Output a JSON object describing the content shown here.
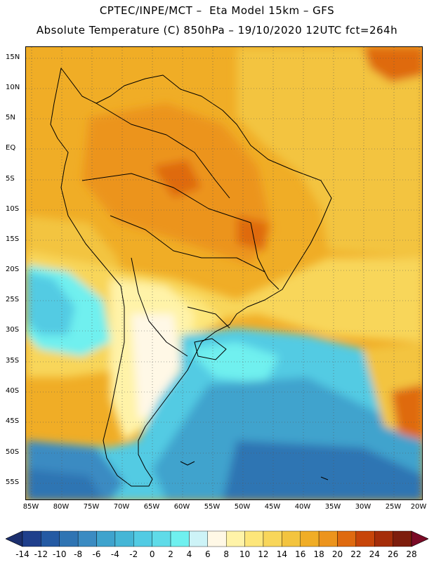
{
  "header": {
    "line1": "CPTEC/INPE/MCT –  Eta Model 15km – GFS",
    "line2": "Absolute Temperature (C) 850hPa – 19/10/2020 12UTC fct=264h"
  },
  "map": {
    "lat_labels": [
      "15N",
      "10N",
      "5N",
      "EQ",
      "5S",
      "10S",
      "15S",
      "20S",
      "25S",
      "30S",
      "35S",
      "40S",
      "45S",
      "50S",
      "55S"
    ],
    "lon_labels": [
      "85W",
      "80W",
      "75W",
      "70W",
      "65W",
      "60W",
      "55W",
      "50W",
      "45W",
      "40W",
      "35W",
      "30W",
      "25W",
      "20W"
    ],
    "gridlines": "dotted"
  },
  "colorbar": {
    "values": [
      "-14",
      "-12",
      "-10",
      "-8",
      "-6",
      "-4",
      "-2",
      "0",
      "2",
      "4",
      "6",
      "8",
      "10",
      "12",
      "14",
      "16",
      "18",
      "20",
      "22",
      "24",
      "26",
      "28"
    ],
    "colors": [
      "#1f3f8c",
      "#245aa3",
      "#2f74b3",
      "#3b8bc2",
      "#3fa3cd",
      "#45b6d6",
      "#52cbe3",
      "#5fdbe8",
      "#6ff0ef",
      "#cdf3f7",
      "#fff8e6",
      "#fff3a8",
      "#fde67a",
      "#f8d65a",
      "#f3c43f",
      "#f0ad26",
      "#ec941d",
      "#df6a0f",
      "#c74509",
      "#a52d09",
      "#7d1d0c"
    ],
    "under_color": "#1c2f6e",
    "over_color": "#7a0a26"
  }
}
